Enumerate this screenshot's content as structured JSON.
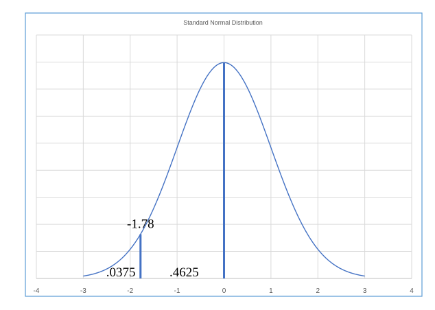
{
  "chart_data": {
    "type": "line",
    "title": "Standard Normal Distribution",
    "xlabel": "",
    "ylabel": "",
    "xlim": [
      -4,
      4
    ],
    "ylim": [
      0,
      0.45
    ],
    "x_ticks": [
      "-4",
      "-3",
      "-2",
      "-1",
      "0",
      "1",
      "2",
      "3",
      "4"
    ],
    "y_ticks_labeled": false,
    "grid": true,
    "series": [
      {
        "function": "standard normal pdf",
        "x_range": [
          -3,
          3
        ],
        "color": "#4472c4"
      }
    ],
    "vertical_markers": [
      {
        "x": -1.78,
        "top": 0.0818,
        "color": "#4472c4"
      },
      {
        "x": 0,
        "top": 0.3989,
        "color": "#4472c4"
      }
    ],
    "annotations": [
      {
        "id": "z-score",
        "text": "-1.78",
        "x": -1.78,
        "y": 0.0818
      },
      {
        "id": "tail-area",
        "text": ".0375",
        "x": -2.2,
        "y": 0
      },
      {
        "id": "middle-area",
        "text": ".4625",
        "x": -0.85,
        "y": 0
      }
    ]
  }
}
